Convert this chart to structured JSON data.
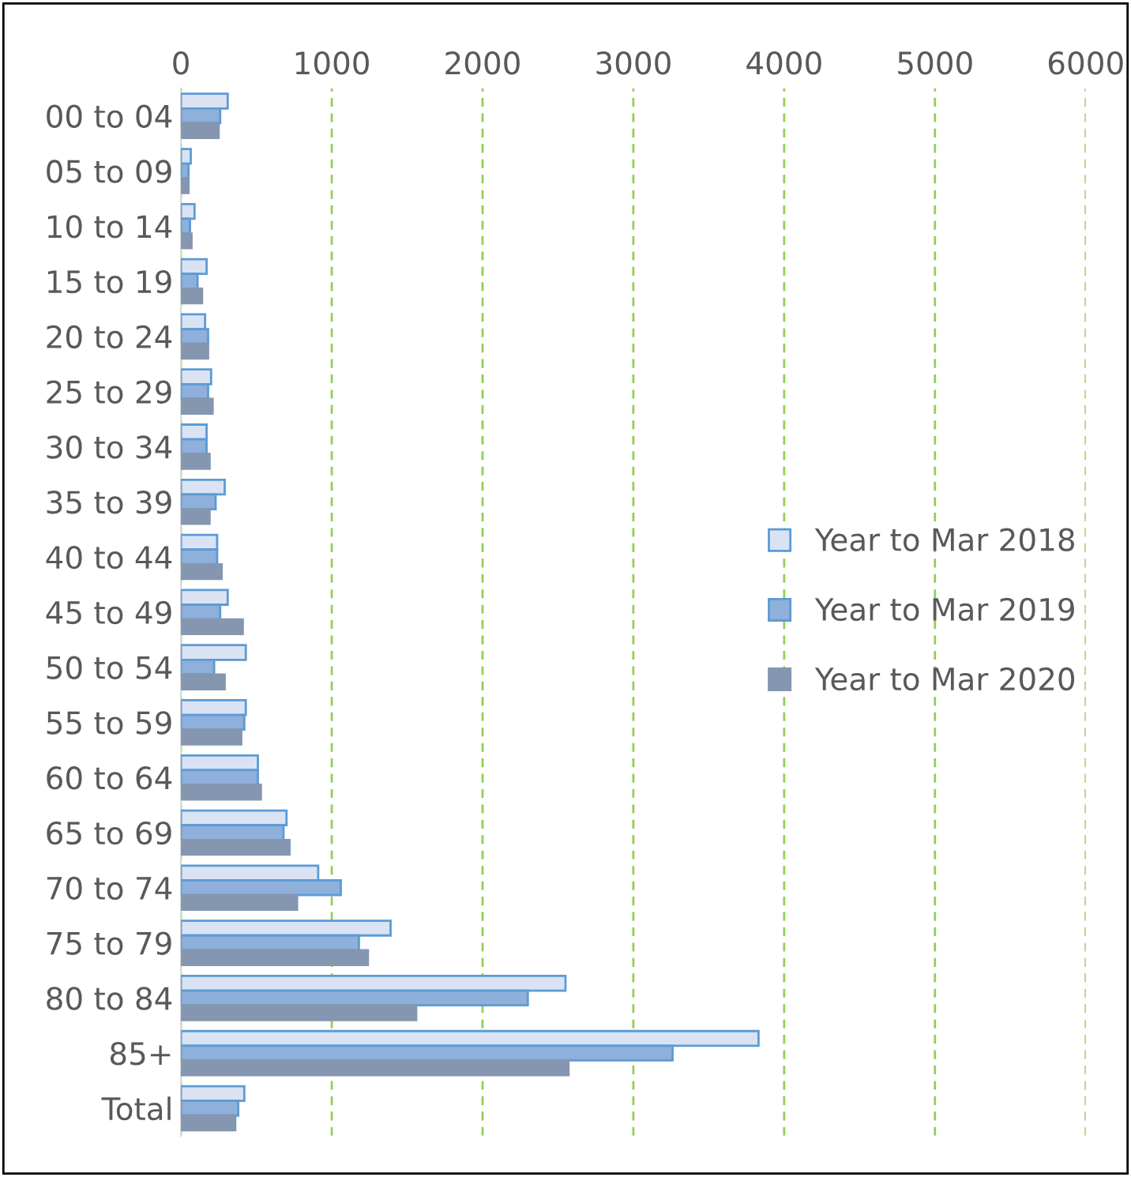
{
  "chart_data": {
    "type": "bar",
    "orientation": "horizontal",
    "categories": [
      "00 to 04",
      "05 to 09",
      "10 to 14",
      "15 to 19",
      "20 to 24",
      "25 to 29",
      "30 to 34",
      "35 to 39",
      "40 to 44",
      "45 to 49",
      "50 to 54",
      "55 to 59",
      "60 to 64",
      "65 to 69",
      "70 to 74",
      "75 to 79",
      "80 to 84",
      "85+",
      "Total"
    ],
    "series": [
      {
        "name": "Year to Mar 2018",
        "color": "#dae3f3",
        "values": [
          310,
          65,
          90,
          170,
          160,
          200,
          170,
          290,
          240,
          310,
          430,
          430,
          510,
          700,
          910,
          1390,
          2550,
          3830,
          420
        ]
      },
      {
        "name": "Year to Mar 2019",
        "color": "#8eb0da",
        "values": [
          260,
          50,
          60,
          110,
          180,
          180,
          170,
          230,
          240,
          260,
          220,
          420,
          510,
          680,
          1060,
          1180,
          2300,
          3260,
          380
        ]
      },
      {
        "name": "Year to Mar 2020",
        "color": "#8496b0",
        "values": [
          250,
          50,
          70,
          140,
          180,
          210,
          190,
          190,
          270,
          410,
          290,
          400,
          530,
          720,
          770,
          1240,
          1560,
          2570,
          360
        ]
      }
    ],
    "xlim": [
      0,
      6000
    ],
    "xticks": [
      0,
      1000,
      2000,
      3000,
      4000,
      5000,
      6000
    ],
    "grid": "x",
    "legend": "right"
  }
}
